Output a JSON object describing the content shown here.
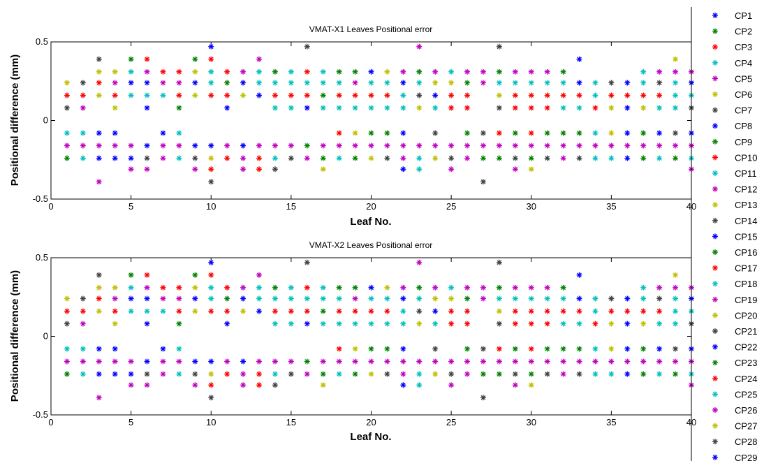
{
  "colors": [
    "#0000ff",
    "#008000",
    "#ff0000",
    "#00bfbf",
    "#bf00bf",
    "#bfbf00",
    "#404040"
  ],
  "chart_data": [
    {
      "type": "scatter",
      "title": "VMAT-X1 Leaves Positional error",
      "xlabel": "Leaf No.",
      "ylabel": "Positional difference (mm)",
      "xlim": [
        0,
        40
      ],
      "ylim": [
        -0.5,
        0.5
      ],
      "xticks": [
        "0",
        "5",
        "10",
        "15",
        "20",
        "25",
        "30",
        "35",
        "40"
      ],
      "yticks": [
        "-0.5",
        "0",
        "0.5"
      ],
      "grid": false,
      "marker": "*",
      "level_values": [
        -0.47,
        -0.39,
        -0.31,
        -0.24,
        -0.16,
        -0.08,
        0.08,
        0.16,
        0.24,
        0.31,
        0.39,
        0.47
      ],
      "leaves": [
        1,
        2,
        3,
        4,
        5,
        6,
        7,
        8,
        9,
        10,
        11,
        12,
        13,
        14,
        15,
        16,
        17,
        18,
        19,
        20,
        21,
        22,
        23,
        24,
        25,
        26,
        27,
        28,
        29,
        30,
        31,
        32,
        33,
        34,
        35,
        36,
        37,
        38,
        39,
        40
      ],
      "point_colors": [
        [
          -1,
          -1,
          -1,
          -1,
          -1,
          -1,
          -1,
          -1,
          -1,
          -1,
          -1,
          -1,
          -1,
          -1,
          -1,
          -1,
          -1,
          -1,
          -1,
          -1,
          -1,
          -1,
          -1,
          -1,
          -1,
          -1,
          -1,
          -1,
          -1,
          -1,
          -1,
          -1,
          -1,
          -1,
          -1,
          -1,
          -1,
          -1,
          -1,
          -1
        ],
        [
          -1,
          -1,
          4,
          -1,
          -1,
          -1,
          -1,
          -1,
          -1,
          6,
          -1,
          -1,
          -1,
          -1,
          -1,
          -1,
          -1,
          -1,
          -1,
          -1,
          -1,
          -1,
          -1,
          -1,
          -1,
          -1,
          6,
          -1,
          -1,
          -1,
          -1,
          -1,
          -1,
          -1,
          -1,
          -1,
          -1,
          -1,
          -1,
          -1
        ],
        [
          -1,
          -1,
          -1,
          -1,
          4,
          4,
          -1,
          -1,
          4,
          2,
          -1,
          4,
          2,
          6,
          -1,
          -1,
          5,
          -1,
          -1,
          -1,
          -1,
          0,
          3,
          -1,
          4,
          -1,
          -1,
          -1,
          4,
          5,
          -1,
          -1,
          -1,
          -1,
          -1,
          -1,
          -1,
          -1,
          -1,
          4
        ],
        [
          1,
          3,
          0,
          0,
          0,
          6,
          4,
          3,
          6,
          5,
          2,
          4,
          2,
          3,
          6,
          4,
          1,
          3,
          1,
          5,
          6,
          4,
          3,
          5,
          6,
          4,
          1,
          1,
          6,
          1,
          6,
          4,
          6,
          3,
          3,
          0,
          1,
          3,
          1,
          3
        ],
        [
          4,
          4,
          4,
          4,
          4,
          0,
          4,
          4,
          0,
          0,
          4,
          0,
          4,
          4,
          4,
          1,
          4,
          4,
          4,
          4,
          4,
          4,
          4,
          4,
          4,
          4,
          4,
          4,
          4,
          4,
          4,
          4,
          4,
          4,
          4,
          4,
          4,
          4,
          4,
          4
        ],
        [
          3,
          3,
          0,
          0,
          -1,
          -1,
          0,
          3,
          -1,
          -1,
          -1,
          -1,
          -1,
          -1,
          -1,
          -1,
          -1,
          2,
          5,
          1,
          1,
          0,
          -1,
          6,
          -1,
          1,
          6,
          2,
          1,
          2,
          1,
          1,
          1,
          3,
          5,
          0,
          1,
          0,
          6,
          0
        ],
        [
          6,
          4,
          -1,
          5,
          -1,
          0,
          -1,
          1,
          -1,
          -1,
          0,
          -1,
          -1,
          3,
          3,
          0,
          3,
          3,
          3,
          3,
          3,
          3,
          5,
          3,
          2,
          2,
          -1,
          6,
          2,
          2,
          2,
          3,
          3,
          2,
          5,
          0,
          5,
          3,
          3,
          6
        ],
        [
          2,
          2,
          5,
          2,
          3,
          3,
          3,
          2,
          5,
          2,
          2,
          5,
          0,
          2,
          2,
          2,
          1,
          2,
          2,
          2,
          2,
          3,
          6,
          0,
          2,
          2,
          -1,
          5,
          2,
          2,
          2,
          2,
          2,
          3,
          2,
          2,
          2,
          2,
          3,
          3
        ],
        [
          5,
          6,
          2,
          4,
          0,
          0,
          4,
          4,
          0,
          3,
          1,
          0,
          3,
          3,
          3,
          3,
          3,
          3,
          4,
          3,
          3,
          0,
          3,
          5,
          5,
          1,
          4,
          3,
          3,
          3,
          3,
          3,
          0,
          3,
          6,
          0,
          3,
          6,
          3,
          0
        ],
        [
          -1,
          -1,
          5,
          5,
          3,
          4,
          2,
          2,
          5,
          3,
          2,
          4,
          3,
          1,
          3,
          2,
          3,
          1,
          1,
          0,
          5,
          4,
          1,
          4,
          3,
          4,
          4,
          1,
          4,
          4,
          4,
          1,
          -1,
          -1,
          -1,
          -1,
          3,
          4,
          4,
          4
        ],
        [
          -1,
          -1,
          6,
          -1,
          1,
          2,
          -1,
          -1,
          1,
          2,
          -1,
          -1,
          4,
          -1,
          -1,
          -1,
          -1,
          -1,
          -1,
          -1,
          -1,
          -1,
          -1,
          -1,
          -1,
          -1,
          -1,
          -1,
          -1,
          -1,
          -1,
          -1,
          0,
          -1,
          -1,
          -1,
          -1,
          -1,
          5,
          -1
        ],
        [
          -1,
          -1,
          -1,
          -1,
          -1,
          -1,
          -1,
          -1,
          -1,
          0,
          -1,
          -1,
          -1,
          -1,
          -1,
          6,
          -1,
          -1,
          -1,
          -1,
          -1,
          -1,
          4,
          -1,
          -1,
          -1,
          -1,
          6,
          -1,
          -1,
          -1,
          -1,
          -1,
          -1,
          -1,
          -1,
          -1,
          -1,
          -1,
          -1
        ]
      ],
      "legend": {
        "placement": "right",
        "entries": [
          "CP1",
          "CP2",
          "CP3",
          "CP4",
          "CP5",
          "CP6",
          "CP7",
          "CP8",
          "CP9",
          "CP10",
          "CP11",
          "CP12",
          "CP13",
          "CP14",
          "CP15",
          "CP16",
          "CP17",
          "CP18",
          "CP19",
          "CP20",
          "CP21",
          "CP22",
          "CP23",
          "CP24",
          "CP25",
          "CP26",
          "CP27",
          "CP28",
          "CP29"
        ]
      }
    },
    {
      "type": "scatter",
      "title": "VMAT-X2 Leaves Positional error",
      "xlabel": "Leaf No.",
      "ylabel": "Positional difference (mm)",
      "xlim": [
        0,
        40
      ],
      "ylim": [
        -0.5,
        0.5
      ],
      "xticks": [
        "0",
        "5",
        "10",
        "15",
        "20",
        "25",
        "30",
        "35",
        "40"
      ],
      "yticks": [
        "-0.5",
        "0",
        "0.5"
      ],
      "grid": false,
      "marker": "*",
      "same_points_as": "VMAT-X1 Leaves Positional error"
    }
  ]
}
